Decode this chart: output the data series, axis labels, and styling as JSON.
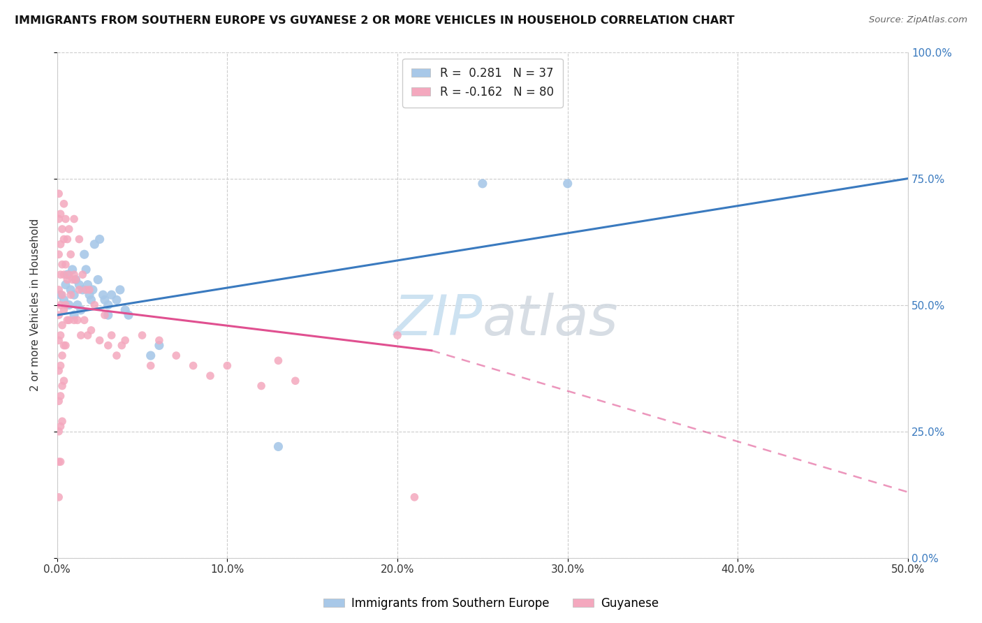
{
  "title": "IMMIGRANTS FROM SOUTHERN EUROPE VS GUYANESE 2 OR MORE VEHICLES IN HOUSEHOLD CORRELATION CHART",
  "source": "Source: ZipAtlas.com",
  "ylabel_label": "2 or more Vehicles in Household",
  "xlim": [
    0.0,
    0.5
  ],
  "ylim": [
    0.0,
    1.0
  ],
  "legend_label1": "R =  0.281   N = 37",
  "legend_label2": "R = -0.162   N = 80",
  "legend_footer1": "Immigrants from Southern Europe",
  "legend_footer2": "Guyanese",
  "color_blue": "#a8c8e8",
  "color_pink": "#f4a8be",
  "color_blue_line": "#3a7abf",
  "color_pink_line": "#e05090",
  "watermark_color": "#c8dff0",
  "blue_scatter": [
    [
      0.002,
      0.52
    ],
    [
      0.004,
      0.51
    ],
    [
      0.005,
      0.54
    ],
    [
      0.006,
      0.56
    ],
    [
      0.007,
      0.5
    ],
    [
      0.008,
      0.53
    ],
    [
      0.009,
      0.57
    ],
    [
      0.01,
      0.52
    ],
    [
      0.01,
      0.48
    ],
    [
      0.011,
      0.55
    ],
    [
      0.012,
      0.5
    ],
    [
      0.013,
      0.54
    ],
    [
      0.014,
      0.49
    ],
    [
      0.015,
      0.53
    ],
    [
      0.016,
      0.6
    ],
    [
      0.017,
      0.57
    ],
    [
      0.018,
      0.54
    ],
    [
      0.019,
      0.52
    ],
    [
      0.02,
      0.51
    ],
    [
      0.021,
      0.53
    ],
    [
      0.022,
      0.62
    ],
    [
      0.024,
      0.55
    ],
    [
      0.025,
      0.63
    ],
    [
      0.027,
      0.52
    ],
    [
      0.028,
      0.51
    ],
    [
      0.03,
      0.5
    ],
    [
      0.03,
      0.48
    ],
    [
      0.032,
      0.52
    ],
    [
      0.035,
      0.51
    ],
    [
      0.037,
      0.53
    ],
    [
      0.04,
      0.49
    ],
    [
      0.042,
      0.48
    ],
    [
      0.055,
      0.4
    ],
    [
      0.06,
      0.42
    ],
    [
      0.13,
      0.22
    ],
    [
      0.25,
      0.74
    ],
    [
      0.3,
      0.74
    ]
  ],
  "pink_scatter": [
    [
      0.001,
      0.72
    ],
    [
      0.001,
      0.67
    ],
    [
      0.001,
      0.6
    ],
    [
      0.001,
      0.53
    ],
    [
      0.001,
      0.48
    ],
    [
      0.001,
      0.43
    ],
    [
      0.001,
      0.37
    ],
    [
      0.001,
      0.31
    ],
    [
      0.001,
      0.25
    ],
    [
      0.001,
      0.19
    ],
    [
      0.001,
      0.12
    ],
    [
      0.002,
      0.68
    ],
    [
      0.002,
      0.62
    ],
    [
      0.002,
      0.56
    ],
    [
      0.002,
      0.5
    ],
    [
      0.002,
      0.44
    ],
    [
      0.002,
      0.38
    ],
    [
      0.002,
      0.32
    ],
    [
      0.002,
      0.26
    ],
    [
      0.002,
      0.19
    ],
    [
      0.003,
      0.65
    ],
    [
      0.003,
      0.58
    ],
    [
      0.003,
      0.52
    ],
    [
      0.003,
      0.46
    ],
    [
      0.003,
      0.4
    ],
    [
      0.003,
      0.34
    ],
    [
      0.003,
      0.27
    ],
    [
      0.004,
      0.7
    ],
    [
      0.004,
      0.63
    ],
    [
      0.004,
      0.56
    ],
    [
      0.004,
      0.49
    ],
    [
      0.004,
      0.42
    ],
    [
      0.004,
      0.35
    ],
    [
      0.005,
      0.67
    ],
    [
      0.005,
      0.58
    ],
    [
      0.005,
      0.5
    ],
    [
      0.005,
      0.42
    ],
    [
      0.006,
      0.63
    ],
    [
      0.006,
      0.55
    ],
    [
      0.006,
      0.47
    ],
    [
      0.007,
      0.65
    ],
    [
      0.007,
      0.56
    ],
    [
      0.007,
      0.47
    ],
    [
      0.008,
      0.6
    ],
    [
      0.008,
      0.52
    ],
    [
      0.009,
      0.55
    ],
    [
      0.01,
      0.67
    ],
    [
      0.01,
      0.56
    ],
    [
      0.01,
      0.47
    ],
    [
      0.011,
      0.55
    ],
    [
      0.012,
      0.47
    ],
    [
      0.013,
      0.63
    ],
    [
      0.013,
      0.53
    ],
    [
      0.014,
      0.44
    ],
    [
      0.015,
      0.56
    ],
    [
      0.016,
      0.47
    ],
    [
      0.017,
      0.53
    ],
    [
      0.018,
      0.44
    ],
    [
      0.019,
      0.53
    ],
    [
      0.02,
      0.45
    ],
    [
      0.022,
      0.5
    ],
    [
      0.025,
      0.43
    ],
    [
      0.028,
      0.48
    ],
    [
      0.03,
      0.42
    ],
    [
      0.032,
      0.44
    ],
    [
      0.035,
      0.4
    ],
    [
      0.038,
      0.42
    ],
    [
      0.04,
      0.43
    ],
    [
      0.05,
      0.44
    ],
    [
      0.055,
      0.38
    ],
    [
      0.06,
      0.43
    ],
    [
      0.07,
      0.4
    ],
    [
      0.08,
      0.38
    ],
    [
      0.09,
      0.36
    ],
    [
      0.1,
      0.38
    ],
    [
      0.12,
      0.34
    ],
    [
      0.13,
      0.39
    ],
    [
      0.14,
      0.35
    ],
    [
      0.2,
      0.44
    ],
    [
      0.21,
      0.12
    ]
  ],
  "blue_line": {
    "x0": 0.0,
    "y0": 0.48,
    "x1": 0.5,
    "y1": 0.75
  },
  "pink_line_solid": {
    "x0": 0.0,
    "y0": 0.5,
    "x1": 0.22,
    "y1": 0.41
  },
  "pink_line_dashed": {
    "x0": 0.22,
    "y0": 0.41,
    "x1": 0.5,
    "y1": 0.13
  }
}
